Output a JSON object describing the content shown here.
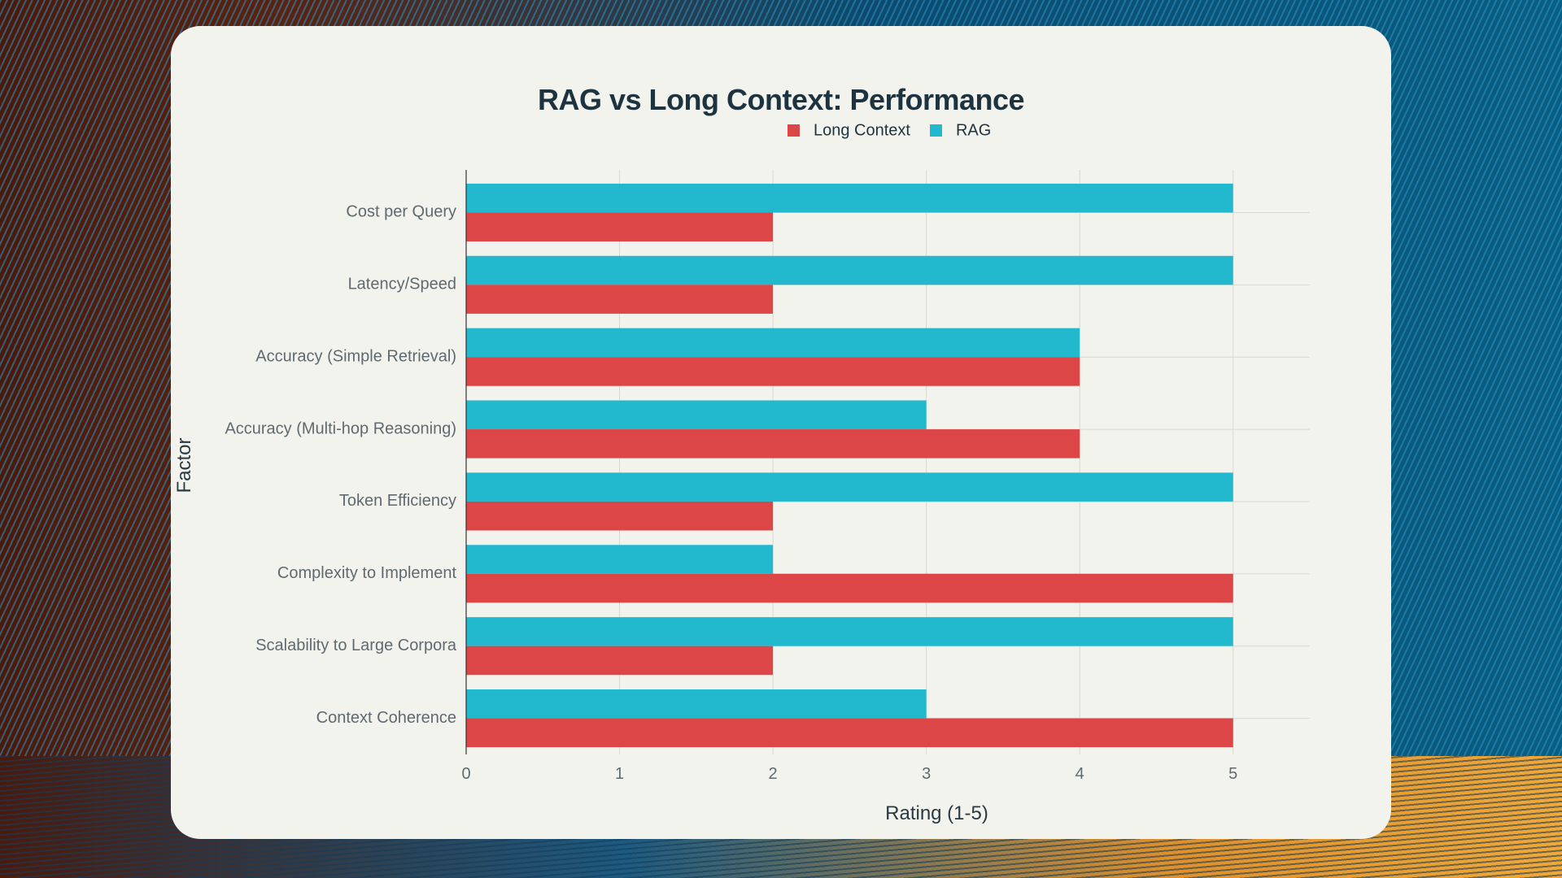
{
  "chart_data": {
    "type": "bar",
    "orientation": "horizontal",
    "title": "RAG vs Long Context: Performance",
    "xlabel": "Rating (1-5)",
    "ylabel": "Factor",
    "xlim": [
      0,
      5.5
    ],
    "xticks": [
      0,
      1,
      2,
      3,
      4,
      5
    ],
    "categories": [
      "Context Coherence",
      "Scalability to Large Corpora",
      "Complexity to Implement",
      "Token Efficiency",
      "Accuracy (Multi-hop Reasoning)",
      "Accuracy (Simple Retrieval)",
      "Latency/Speed",
      "Cost per Query"
    ],
    "series": [
      {
        "name": "Long Context",
        "color": "#dc4647",
        "values": [
          5,
          2,
          5,
          2,
          4,
          4,
          2,
          2
        ]
      },
      {
        "name": "RAG",
        "color": "#22b9cf",
        "values": [
          3,
          5,
          2,
          5,
          3,
          4,
          5,
          5
        ]
      }
    ],
    "legend": {
      "position": "top-center",
      "order": [
        "Long Context",
        "RAG"
      ]
    },
    "grid": true
  }
}
